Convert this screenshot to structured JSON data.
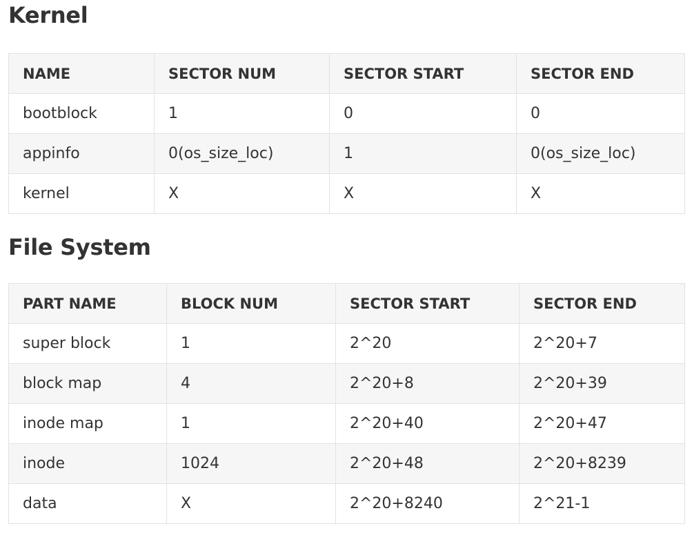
{
  "kernel_section": {
    "title": "Kernel",
    "headers": [
      "NAME",
      "SECTOR NUM",
      "SECTOR START",
      "SECTOR END"
    ],
    "rows": [
      [
        "bootblock",
        "1",
        "0",
        "0"
      ],
      [
        "appinfo",
        "0(os_size_loc)",
        "1",
        "0(os_size_loc)"
      ],
      [
        "kernel",
        "X",
        "X",
        "X"
      ]
    ]
  },
  "fs_section": {
    "title": "File System",
    "headers": [
      "PART NAME",
      "BLOCK NUM",
      "SECTOR START",
      "SECTOR END"
    ],
    "rows": [
      [
        "super block",
        "1",
        "2^20",
        "2^20+7"
      ],
      [
        "block map",
        "4",
        "2^20+8",
        "2^20+39"
      ],
      [
        "inode map",
        "1",
        "2^20+40",
        "2^20+47"
      ],
      [
        "inode",
        "1024",
        "2^20+48",
        "2^20+8239"
      ],
      [
        "data",
        "X",
        "2^20+8240",
        "2^21-1"
      ]
    ]
  }
}
